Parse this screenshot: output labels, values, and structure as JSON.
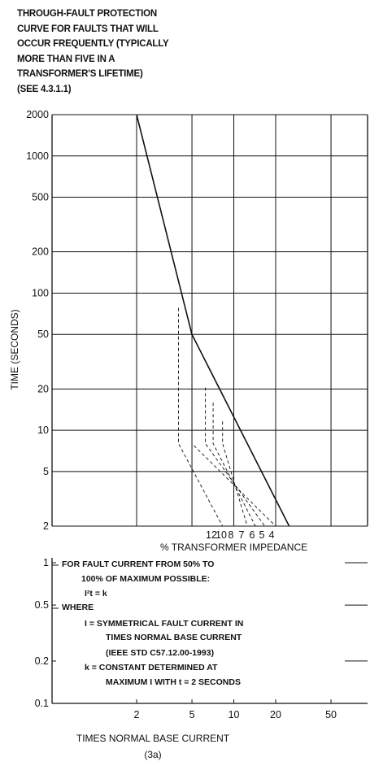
{
  "title_lines": [
    "THROUGH-FAULT PROTECTION",
    "CURVE FOR FAULTS THAT WILL",
    "OCCUR FREQUENTLY (TYPICALLY",
    "MORE THAN FIVE IN A",
    "TRANSFORMER'S LIFETIME)",
    "(SEE 4.3.1.1)"
  ],
  "impedance_label": "% TRANSFORMER IMPEDANCE",
  "impedance_numbers": [
    "12",
    "10",
    "8",
    "7",
    "6",
    "5",
    "4"
  ],
  "notes": [
    "FOR FAULT CURRENT FROM 50% TO",
    "100% OF MAXIMUM POSSIBLE:",
    "I²t = k",
    "WHERE",
    "I = SYMMETRICAL FAULT CURRENT IN",
    "TIMES NORMAL BASE CURRENT",
    "(IEEE STD C57.12.00-1993)",
    "k = CONSTANT DETERMINED AT",
    "MAXIMUM  I  WITH t = 2 SECONDS"
  ],
  "chart_data": {
    "type": "line",
    "xlabel": "TIMES NORMAL BASE CURRENT",
    "sublabel": "(3a)",
    "ylabel": "TIME (SECONDS)",
    "x_scale": "log",
    "y_scale": "log",
    "xlim": [
      1,
      100
    ],
    "ylim": [
      0.1,
      2000
    ],
    "grid": true,
    "x_ticks": [
      2,
      5,
      10,
      20,
      50
    ],
    "x_tick_labels": [
      "2",
      "5",
      "10",
      "20",
      "50"
    ],
    "y_ticks": [
      2000,
      1000,
      500,
      200,
      100,
      50,
      20,
      10,
      5,
      2,
      1,
      0.5,
      0.2,
      0.1
    ],
    "y_tick_labels": [
      "2000",
      "1000",
      "500",
      "200",
      "100",
      "50",
      "20",
      "10",
      "5",
      "2",
      "1",
      "0.5",
      "0.2",
      "0.1"
    ],
    "series": [
      {
        "style": "solid",
        "points": [
          [
            2,
            2000
          ],
          [
            5,
            50
          ],
          [
            25,
            2
          ]
        ]
      },
      {
        "style": "dashed",
        "impedance": "4",
        "points": [
          [
            5,
            50
          ],
          [
            25,
            2
          ]
        ]
      },
      {
        "style": "dashed",
        "impedance": "5",
        "points": [
          [
            5,
            32
          ],
          [
            5,
            8
          ],
          [
            20,
            2
          ]
        ]
      },
      {
        "style": "dashed",
        "impedance": "6",
        "points": [
          [
            6.25,
            20.5
          ],
          [
            6.25,
            8
          ],
          [
            16.7,
            2
          ]
        ]
      },
      {
        "style": "dashed",
        "impedance": "7",
        "points": [
          [
            7.1,
            15.9
          ],
          [
            7.1,
            8
          ],
          [
            14.3,
            2
          ]
        ]
      },
      {
        "style": "dashed",
        "impedance": "8",
        "points": [
          [
            8.3,
            11.6
          ],
          [
            8.3,
            8
          ],
          [
            12.5,
            2
          ]
        ]
      },
      {
        "style": "dashed",
        "impedance": "10",
        "points": [
          [
            10,
            8
          ],
          [
            10,
            2
          ]
        ]
      },
      {
        "style": "dashed",
        "impedance": "12",
        "points": [
          [
            4,
            78
          ],
          [
            4,
            8
          ],
          [
            8.3,
            2
          ]
        ]
      }
    ]
  }
}
